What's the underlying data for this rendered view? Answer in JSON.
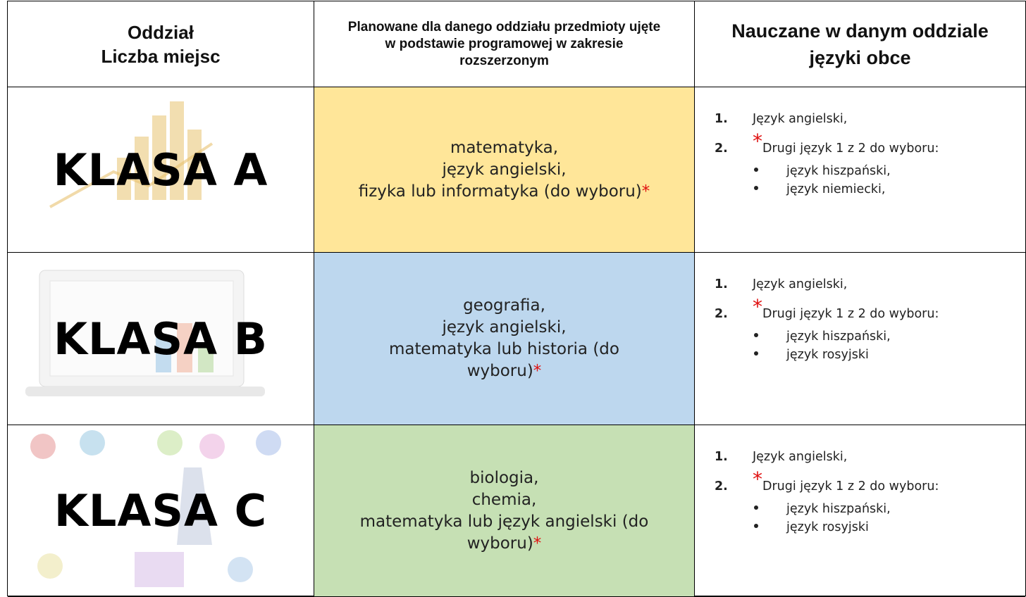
{
  "table": {
    "header": [
      [
        "Oddział",
        "Liczba miejsc"
      ],
      [
        "Planowane dla danego oddziału przedmioty ujęte",
        "w podstawie programowej w zakresie",
        "rozszerzonym"
      ],
      [
        "Nauczane w danym oddziale",
        "języki obce"
      ]
    ],
    "rows": [
      {
        "class": "KLASA A",
        "color": "#ffe699",
        "subjects": [
          "matematyka,",
          "język angielski,",
          "fizyka lub informatyka (do wyboru)"
        ],
        "mark": "*",
        "languages": [
          {
            "number": "1.",
            "text": "Język angielski,"
          },
          {
            "number": "2.",
            "mark": "*",
            "text": "Drugi język 1 z 2 do wyboru:"
          }
        ],
        "options": [
          "język hiszpański,",
          "język niemiecki,"
        ]
      },
      {
        "class": "KLASA B",
        "color": "#bdd7ee",
        "subjects": [
          "geografia,",
          "język angielski,",
          "matematyka lub historia (do",
          "wyboru)"
        ],
        "mark": "*",
        "languages": [
          {
            "number": "1.",
            "text": "Język angielski,"
          },
          {
            "number": "2.",
            "mark": "*",
            "text": "Drugi język 1 z 2 do wyboru:"
          }
        ],
        "options": [
          "język hiszpański,",
          "język rosyjski"
        ]
      },
      {
        "class": "KLASA C",
        "color": "#c6e0b4",
        "subjects": [
          "biologia,",
          "chemia,",
          "matematyka lub język angielski (do",
          "wyboru)"
        ],
        "mark": "*",
        "languages": [
          {
            "number": "1.",
            "text": "Język angielski,"
          },
          {
            "number": "2.",
            "mark": "*",
            "text": "Drugi język 1 z 2 do wyboru:"
          }
        ],
        "options": [
          "język hiszpański,",
          "język rosyjski"
        ]
      }
    ]
  }
}
